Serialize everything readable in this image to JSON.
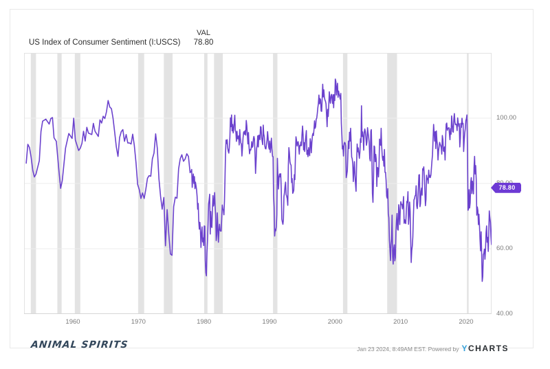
{
  "header": {
    "title": "US Index of Consumer Sentiment (I:USCS)",
    "column_label": "VAL",
    "value": "78.80"
  },
  "footer": {
    "brand": "ANIMAL SPIRITS",
    "timestamp": "Jan 23 2024, 8:49AM EST. Powered by",
    "ycharts_y": "Y",
    "ycharts_rest": "CHARTS"
  },
  "colors": {
    "line": "#6b42cd",
    "badge": "#6d3ad4",
    "band": "#e3e3e3",
    "grid": "#eeeeee",
    "plot_border": "#e2e2e2",
    "axis_line": "#d6d6d6",
    "tick_text": "#7a7a7a",
    "ycharts_blue": "#35a0d9"
  },
  "chart_data": {
    "type": "line",
    "title": "US Index of Consumer Sentiment (I:USCS)",
    "legend": "VAL",
    "current_value": 78.8,
    "current_value_label": "78.80",
    "grid": "horizontal-only",
    "legend_position": "top-left",
    "x_axis": {
      "ticks": [
        1960,
        1970,
        1980,
        1990,
        2000,
        2010,
        2020
      ],
      "range": [
        1952.75,
        2024.1
      ]
    },
    "y_axis": {
      "range": [
        40,
        120
      ],
      "ticks": [
        {
          "value": 100,
          "label": "100.00"
        },
        {
          "value": 80,
          "label": "80.00"
        },
        {
          "value": 60,
          "label": "60.00"
        },
        {
          "value": 40,
          "label": "40.00"
        }
      ]
    },
    "recessions": [
      [
        1953.58,
        1954.38
      ],
      [
        1957.63,
        1958.29
      ],
      [
        1960.29,
        1961.13
      ],
      [
        1969.96,
        1970.88
      ],
      [
        1973.88,
        1975.21
      ],
      [
        1980.04,
        1980.54
      ],
      [
        1981.54,
        1982.88
      ],
      [
        1990.54,
        1991.21
      ],
      [
        2001.21,
        2001.88
      ],
      [
        2007.96,
        2009.46
      ],
      [
        2020.13,
        2020.33
      ]
    ],
    "series": [
      {
        "name": "US Index of Consumer Sentiment",
        "early_points": [
          [
            1952.88,
            86.2
          ],
          [
            1953.13,
            92.0
          ],
          [
            1953.38,
            91.0
          ],
          [
            1953.63,
            88.0
          ],
          [
            1953.88,
            84.0
          ],
          [
            1954.13,
            82.0
          ],
          [
            1954.38,
            82.9
          ],
          [
            1954.88,
            87.0
          ],
          [
            1955.13,
            95.9
          ],
          [
            1955.38,
            99.1
          ],
          [
            1955.88,
            99.7
          ],
          [
            1956.38,
            98.2
          ],
          [
            1956.63,
            99.9
          ],
          [
            1956.88,
            100.2
          ],
          [
            1957.13,
            94.0
          ],
          [
            1957.47,
            92.9
          ],
          [
            1957.88,
            83.7
          ],
          [
            1958.13,
            78.5
          ],
          [
            1958.38,
            80.9
          ],
          [
            1958.88,
            90.8
          ],
          [
            1959.38,
            95.3
          ],
          [
            1959.88,
            93.8
          ],
          [
            1960.13,
            100.0
          ],
          [
            1960.38,
            93.3
          ],
          [
            1960.88,
            90.1
          ],
          [
            1961.13,
            90.8
          ],
          [
            1961.38,
            92.3
          ],
          [
            1961.63,
            96.0
          ],
          [
            1961.88,
            93.0
          ],
          [
            1962.13,
            97.2
          ],
          [
            1962.38,
            95.4
          ],
          [
            1962.88,
            95.0
          ],
          [
            1963.13,
            98.4
          ],
          [
            1963.38,
            96.0
          ],
          [
            1963.88,
            94.4
          ],
          [
            1964.13,
            99.5
          ],
          [
            1964.38,
            98.5
          ],
          [
            1964.63,
            100.6
          ],
          [
            1964.88,
            99.9
          ],
          [
            1965.13,
            102.0
          ],
          [
            1965.38,
            105.4
          ],
          [
            1965.63,
            103.4
          ],
          [
            1965.88,
            102.9
          ],
          [
            1966.13,
            100.0
          ],
          [
            1966.38,
            95.7
          ],
          [
            1966.63,
            91.2
          ],
          [
            1966.88,
            88.3
          ],
          [
            1967.13,
            94.1
          ],
          [
            1967.38,
            95.9
          ],
          [
            1967.63,
            96.5
          ],
          [
            1967.88,
            92.9
          ],
          [
            1968.13,
            95.0
          ],
          [
            1968.38,
            92.4
          ],
          [
            1968.63,
            92.4
          ],
          [
            1968.88,
            92.1
          ],
          [
            1969.13,
            95.1
          ],
          [
            1969.38,
            91.6
          ],
          [
            1969.63,
            86.4
          ],
          [
            1969.88,
            79.7
          ],
          [
            1970.13,
            78.1
          ],
          [
            1970.38,
            75.4
          ],
          [
            1970.63,
            77.1
          ],
          [
            1970.88,
            75.4
          ],
          [
            1971.13,
            78.2
          ],
          [
            1971.38,
            81.6
          ],
          [
            1971.63,
            82.4
          ],
          [
            1971.88,
            82.2
          ],
          [
            1972.13,
            87.5
          ],
          [
            1972.38,
            89.3
          ],
          [
            1972.63,
            95.2
          ],
          [
            1972.88,
            90.8
          ],
          [
            1973.13,
            81.4
          ],
          [
            1973.38,
            76.0
          ],
          [
            1973.63,
            72.1
          ],
          [
            1973.88,
            75.7
          ],
          [
            1974.13,
            60.9
          ],
          [
            1974.38,
            72.0
          ],
          [
            1974.63,
            64.5
          ],
          [
            1974.88,
            58.4
          ],
          [
            1975.13,
            58.0
          ],
          [
            1975.38,
            72.9
          ],
          [
            1975.63,
            75.8
          ],
          [
            1975.88,
            75.5
          ],
          [
            1976.13,
            84.5
          ],
          [
            1976.38,
            87.6
          ],
          [
            1976.63,
            88.8
          ],
          [
            1976.88,
            86.8
          ],
          [
            1977.13,
            87.5
          ],
          [
            1977.38,
            89.1
          ],
          [
            1977.63,
            88.3
          ],
          [
            1977.88,
            83.3
          ]
        ],
        "monthly_start_year": 1978,
        "monthly": [
          [
            83.7,
            84.3,
            78.8,
            81.6,
            82.9,
            80.0,
            82.1,
            78.4,
            80.4,
            79.3,
            78.1,
            76.0
          ],
          [
            72.1,
            73.9,
            68.4,
            66.0,
            68.1,
            65.8,
            60.4,
            64.5,
            66.7,
            62.1,
            63.3,
            61.0
          ],
          [
            67.0,
            66.9,
            56.5,
            52.7,
            51.7,
            58.7,
            62.3,
            67.3,
            73.7,
            75.0,
            76.7,
            64.5
          ],
          [
            71.4,
            66.9,
            66.5,
            72.4,
            76.3,
            73.1,
            74.1,
            77.2,
            73.1,
            70.3,
            62.5,
            64.3
          ],
          [
            71.0,
            66.5,
            62.0,
            65.5,
            67.5,
            65.7,
            65.4,
            65.4,
            69.3,
            73.4,
            72.1,
            71.9
          ],
          [
            70.4,
            74.6,
            80.8,
            89.1,
            93.3,
            92.2,
            93.4,
            90.9,
            89.9,
            89.3,
            91.1,
            94.2
          ],
          [
            100.1,
            97.4,
            101.0,
            96.1,
            98.1,
            95.5,
            96.6,
            99.1,
            100.9,
            96.3,
            95.7,
            92.9
          ],
          [
            96.0,
            93.7,
            93.7,
            94.6,
            91.8,
            96.5,
            94.0,
            92.4,
            92.1,
            88.4,
            90.9,
            93.9
          ],
          [
            95.6,
            95.9,
            95.1,
            96.2,
            94.8,
            99.3,
            97.7,
            94.9,
            92.1,
            95.6,
            91.4,
            89.1
          ],
          [
            90.4,
            90.2,
            90.8,
            92.8,
            91.1,
            91.5,
            93.7,
            94.4,
            93.6,
            89.3,
            83.1,
            86.8
          ],
          [
            90.8,
            91.6,
            94.6,
            91.2,
            94.8,
            94.7,
            93.4,
            97.4,
            97.3,
            94.1,
            93.0,
            91.9
          ],
          [
            97.9,
            95.2,
            94.3,
            91.5,
            90.7,
            90.6,
            92.0,
            93.2,
            95.9,
            93.9,
            91.2,
            90.5
          ],
          [
            93.0,
            89.5,
            91.3,
            93.9,
            90.6,
            88.3,
            88.2,
            76.4,
            72.8,
            63.9,
            66.0,
            65.5
          ],
          [
            66.8,
            70.4,
            87.7,
            81.8,
            78.3,
            82.1,
            82.9,
            82.0,
            83.0,
            78.3,
            69.1,
            68.2
          ],
          [
            67.5,
            68.8,
            76.0,
            77.2,
            79.2,
            80.4,
            76.6,
            76.1,
            75.3,
            73.3,
            85.3,
            91.0
          ],
          [
            89.3,
            86.6,
            85.9,
            85.6,
            80.3,
            81.5,
            77.0,
            77.3,
            77.9,
            82.7,
            81.2,
            88.2
          ],
          [
            94.3,
            93.2,
            91.5,
            92.6,
            92.8,
            91.2,
            89.0,
            91.7,
            91.5,
            92.7,
            91.6,
            95.1
          ],
          [
            97.6,
            95.1,
            90.3,
            92.5,
            89.8,
            92.7,
            94.4,
            96.2,
            88.9,
            90.2,
            88.2,
            91.0
          ],
          [
            89.3,
            88.5,
            93.7,
            92.7,
            89.4,
            92.4,
            94.7,
            95.3,
            94.7,
            96.5,
            99.2,
            96.9
          ],
          [
            97.4,
            99.7,
            100.0,
            101.4,
            103.2,
            104.5,
            107.1,
            104.4,
            106.0,
            105.6,
            102.2,
            102.1
          ],
          [
            106.6,
            110.4,
            106.5,
            108.7,
            106.5,
            105.6,
            105.2,
            104.4,
            100.9,
            97.4,
            102.7,
            100.5
          ],
          [
            103.9,
            108.1,
            105.7,
            104.6,
            106.8,
            107.3,
            106.0,
            104.5,
            107.2,
            103.2,
            107.2,
            105.4
          ],
          [
            112.0,
            111.3,
            107.1,
            109.2,
            110.7,
            106.4,
            108.3,
            107.3,
            106.8,
            105.8,
            107.6,
            98.4
          ],
          [
            94.7,
            90.6,
            91.5,
            88.4,
            92.0,
            92.6,
            92.4,
            91.5,
            81.8,
            82.7,
            83.9,
            88.8
          ],
          [
            93.0,
            90.7,
            95.7,
            93.0,
            96.9,
            92.4,
            88.1,
            87.6,
            86.1,
            80.6,
            84.2,
            86.7
          ],
          [
            82.4,
            79.9,
            77.6,
            86.0,
            92.1,
            89.7,
            90.9,
            89.3,
            87.7,
            89.6,
            93.7,
            92.6
          ],
          [
            103.8,
            94.4,
            95.8,
            94.2,
            90.2,
            95.6,
            96.7,
            95.9,
            94.2,
            91.7,
            92.8,
            97.1
          ],
          [
            95.5,
            94.1,
            92.6,
            87.7,
            86.9,
            96.0,
            96.5,
            89.1,
            76.9,
            74.2,
            81.6,
            91.5
          ],
          [
            91.2,
            86.7,
            88.9,
            87.4,
            79.1,
            84.9,
            84.7,
            82.0,
            85.4,
            93.6,
            92.1,
            91.7
          ],
          [
            96.9,
            91.3,
            88.4,
            87.1,
            88.3,
            85.3,
            90.4,
            83.4,
            83.4,
            80.9,
            76.1,
            75.5
          ],
          [
            78.4,
            70.8,
            69.5,
            62.6,
            59.8,
            56.4,
            61.2,
            63.0,
            70.3,
            57.6,
            55.3,
            60.1
          ],
          [
            61.2,
            56.3,
            57.3,
            65.1,
            68.7,
            70.8,
            66.0,
            65.7,
            73.5,
            70.6,
            67.4,
            72.5
          ],
          [
            74.4,
            73.6,
            73.6,
            72.2,
            73.6,
            76.0,
            67.8,
            68.9,
            68.2,
            67.7,
            71.6,
            74.5
          ],
          [
            74.2,
            77.5,
            67.5,
            69.8,
            74.3,
            71.5,
            63.7,
            55.8,
            59.5,
            60.8,
            63.7,
            69.9
          ],
          [
            75.0,
            75.3,
            76.2,
            76.4,
            79.3,
            73.2,
            72.3,
            74.3,
            78.3,
            82.6,
            82.7,
            72.9
          ],
          [
            73.8,
            77.6,
            78.6,
            76.4,
            84.5,
            84.1,
            85.1,
            82.1,
            77.5,
            73.2,
            75.1,
            82.5
          ],
          [
            81.2,
            81.6,
            80.0,
            84.1,
            81.9,
            82.5,
            81.8,
            82.5,
            84.6,
            86.9,
            88.8,
            93.6
          ],
          [
            98.1,
            95.4,
            93.0,
            95.9,
            90.7,
            96.1,
            93.1,
            91.9,
            87.2,
            90.0,
            91.3,
            92.6
          ],
          [
            92.0,
            91.7,
            91.0,
            89.0,
            94.7,
            93.5,
            90.0,
            89.8,
            91.2,
            87.2,
            93.8,
            98.2
          ],
          [
            98.5,
            96.3,
            96.9,
            97.0,
            97.1,
            95.0,
            93.4,
            96.8,
            95.1,
            100.7,
            98.5,
            95.9
          ],
          [
            95.7,
            99.7,
            101.4,
            98.8,
            98.0,
            98.2,
            97.9,
            96.2,
            100.1,
            98.6,
            97.5,
            98.3
          ],
          [
            91.2,
            93.8,
            98.4,
            97.2,
            100.0,
            98.2,
            98.4,
            89.8,
            93.2,
            95.5,
            96.8,
            99.3
          ],
          [
            99.8,
            101.0,
            89.1,
            71.8,
            72.3,
            78.1,
            72.5,
            74.1,
            80.4,
            81.8,
            76.9,
            80.7
          ],
          [
            79.0,
            76.8,
            84.9,
            88.3,
            82.9,
            85.5,
            81.2,
            70.3,
            72.8,
            71.7,
            67.4,
            70.6
          ],
          [
            67.2,
            62.8,
            59.4,
            65.2,
            58.4,
            50.0,
            51.5,
            58.2,
            58.6,
            59.9,
            56.8,
            59.7
          ],
          [
            64.9,
            67.0,
            62.0,
            63.5,
            59.2,
            64.4,
            71.6,
            69.5,
            68.1,
            63.8,
            61.3,
            69.7
          ]
        ],
        "last_point": [
          2024.06,
          78.8
        ]
      }
    ]
  }
}
